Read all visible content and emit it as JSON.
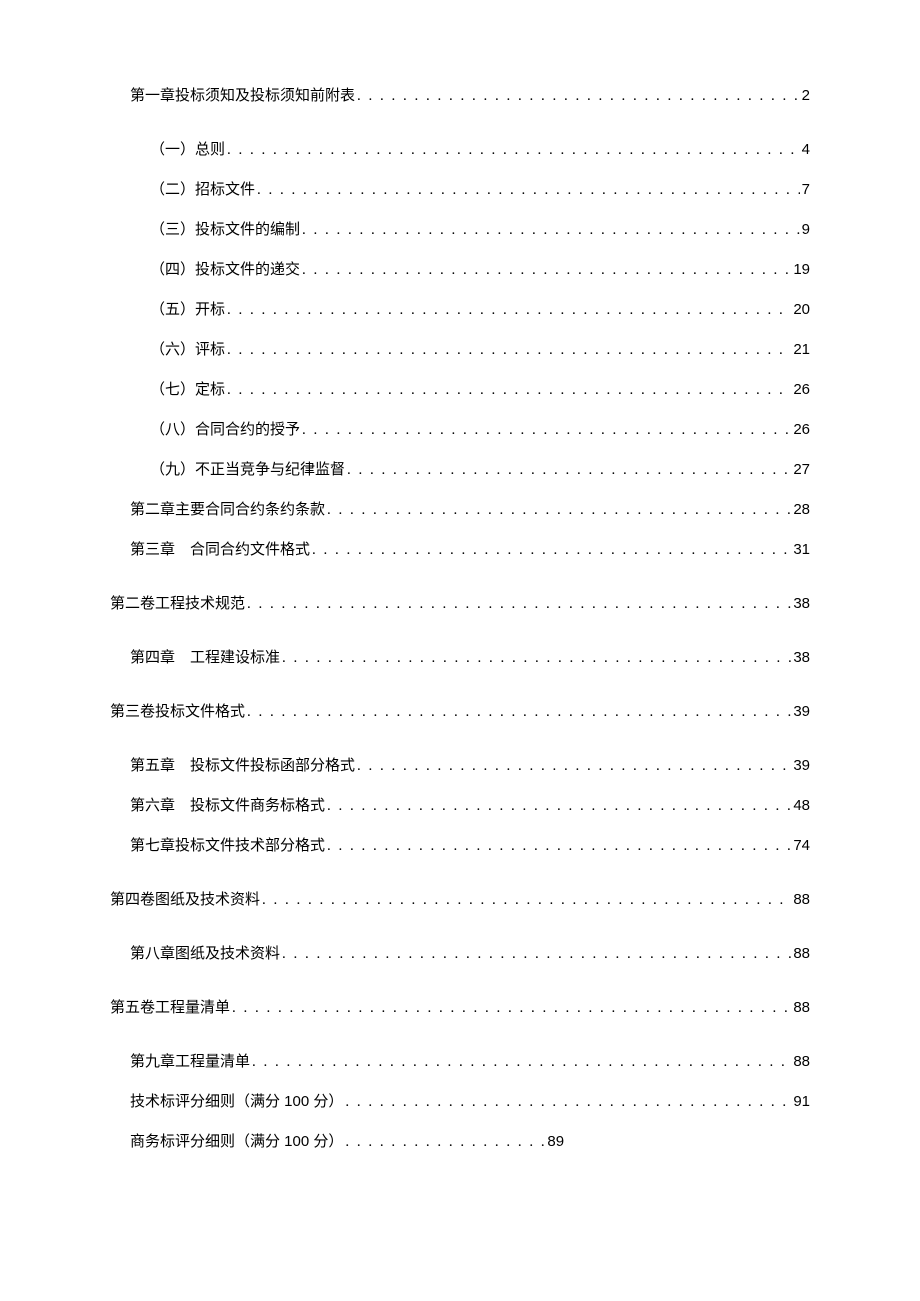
{
  "toc": [
    {
      "label": "第一章投标须知及投标须知前附表",
      "page": "2",
      "level": 1,
      "spacing": "large"
    },
    {
      "label": "（一）总则",
      "page": "4",
      "level": 2,
      "spacing": "normal",
      "space_after_label": true
    },
    {
      "label": "（二）招标文件",
      "page": "7",
      "level": 2,
      "spacing": "normal",
      "space_after_label": true
    },
    {
      "label": "（三）投标文件的编制",
      "page": "9",
      "level": 2,
      "spacing": "normal",
      "space_after_label": true
    },
    {
      "label": "（四）投标文件的递交",
      "page": "19",
      "level": 2,
      "spacing": "normal",
      "space_after_label": true
    },
    {
      "label": "（五）开标",
      "page": "20",
      "level": 2,
      "spacing": "normal",
      "space_after_label": true
    },
    {
      "label": "（六）评标",
      "page": "21",
      "level": 2,
      "spacing": "normal",
      "space_after_label": true
    },
    {
      "label": "（七）定标",
      "page": "26",
      "level": 2,
      "spacing": "normal",
      "space_after_label": true
    },
    {
      "label": "（八）合同合约的授予",
      "page": "26",
      "level": 2,
      "spacing": "normal"
    },
    {
      "label": "（九）不正当竞争与纪律监督",
      "page": "27",
      "level": 2,
      "spacing": "normal",
      "space_after_label": true
    },
    {
      "label": "第二章主要合同合约条约条款",
      "page": "28",
      "level": 1,
      "spacing": "normal",
      "space_after_label": true
    },
    {
      "label": "第三章　合同合约文件格式",
      "page": "31",
      "level": 1,
      "spacing": "large"
    },
    {
      "label": "第二卷工程技术规范",
      "page": "38",
      "level": 0,
      "spacing": "large"
    },
    {
      "label": "第四章　工程建设标准",
      "page": "38",
      "level": 1,
      "spacing": "large"
    },
    {
      "label": "第三卷投标文件格式",
      "page": "39",
      "level": 0,
      "spacing": "large"
    },
    {
      "label": "第五章　投标文件投标函部分格式",
      "page": "39",
      "level": 1,
      "spacing": "normal"
    },
    {
      "label": "第六章　投标文件商务标格式",
      "page": "48",
      "level": 1,
      "spacing": "normal"
    },
    {
      "label": "第七章投标文件技术部分格式",
      "page": "74",
      "level": 1,
      "spacing": "large",
      "space_after_label": true
    },
    {
      "label": "第四卷图纸及技术资料",
      "page": "88",
      "level": 0,
      "spacing": "large"
    },
    {
      "label": "第八章图纸及技术资料",
      "page": "88",
      "level": 1,
      "spacing": "large",
      "space_after_label": true
    },
    {
      "label": "第五卷工程量清单",
      "page": "88",
      "level": 0,
      "spacing": "large"
    },
    {
      "label": "第九章工程量清单",
      "page": "88",
      "level": 1,
      "spacing": "normal",
      "space_after_label": true
    },
    {
      "label": "技术标评分细则（满分",
      "page": "91",
      "level": 1,
      "spacing": "normal",
      "score": "100",
      "suffix": "分）",
      "space_after_label": true
    },
    {
      "label": "商务标评分细则（满分",
      "page": "89",
      "level": 1,
      "spacing": "normal",
      "score": "100",
      "suffix": "分）",
      "short": true,
      "space_after_label": true
    }
  ],
  "dots": ". . . . . . . . . . . . . . . . . . . . . . . . . . . . . . . . . . . . . . . . . . . . . . . . . . . . . . . . . . . . . . . . . . . . . . . . . . . . . . . . . . . . . . . . . . . . . . . . . . . . . . . . . . . . . . . . . . . . . . . ."
}
